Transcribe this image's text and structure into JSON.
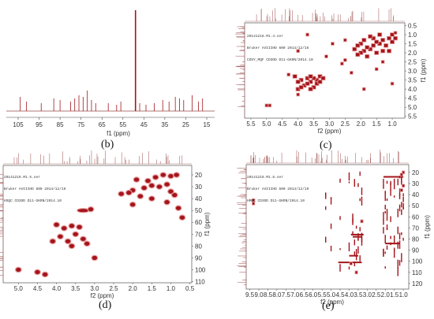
{
  "colors": {
    "peak": "#a3151b",
    "peakLight": "#e8a0a0",
    "frame": "#555555"
  },
  "panels": {
    "b": {
      "label": "(b)",
      "xlabel": "f1 (ppm)",
      "xticks": [
        "105",
        "95",
        "85",
        "75",
        "65",
        "55",
        "45",
        "35",
        "25",
        "15"
      ]
    },
    "c": {
      "label": "(c)",
      "xlabel": "f2 (ppm)",
      "ylabel": "f1 (ppm)",
      "header": [
        "20141216.M1.4.ser",
        "Bruker AVIIIHD 600 2014/12/16",
        "COSY_MQF CD3OD D11-GKRN/2014.10"
      ],
      "xticks": [
        "5.5",
        "5.0",
        "4.5",
        "4.0",
        "3.5",
        "3.0",
        "2.5",
        "2.0",
        "1.5",
        "1.0"
      ],
      "yticks": [
        "0.5",
        "1.0",
        "1.5",
        "2.0",
        "2.5",
        "3.0",
        "3.5",
        "4.0",
        "4.5",
        "5.0",
        "5.5"
      ]
    },
    "d": {
      "label": "(d)",
      "xlabel": "f2 (ppm)",
      "ylabel": "f1 (ppm)",
      "header": [
        "20141219.M1.5.ser",
        "Bruker AVIIIHD 600 2014/12/19",
        "HSQC CD3OD D11-GKRN/2014.10"
      ],
      "xticks": [
        "5.0",
        "4.5",
        "4.0",
        "3.5",
        "3.0",
        "2.5",
        "2.0",
        "1.5",
        "1.0",
        "0.5"
      ],
      "yticks": [
        "20",
        "30",
        "40",
        "50",
        "60",
        "70",
        "80",
        "90",
        "100",
        "110"
      ]
    },
    "e": {
      "label": "(e)",
      "xlabel": "f2 (ppm)",
      "ylabel": "f1 (ppm)",
      "header": [
        "20141219.M1.8.ser",
        "Bruker AVIIIHD 600 2014/12/19",
        "HMBC CD3OD D11-GKRN/2014.10"
      ],
      "xticks": [
        "9.5",
        "9.0",
        "8.5",
        "8.0",
        "7.5",
        "7.0",
        "6.5",
        "6.0",
        "5.5",
        "5.0",
        "4.5",
        "4.0",
        "3.5",
        "3.0",
        "2.5",
        "2.0",
        "1.5",
        "1.0"
      ],
      "yticks": [
        "20",
        "30",
        "40",
        "50",
        "60",
        "70",
        "80",
        "90",
        "100",
        "110",
        "120"
      ]
    }
  }
}
